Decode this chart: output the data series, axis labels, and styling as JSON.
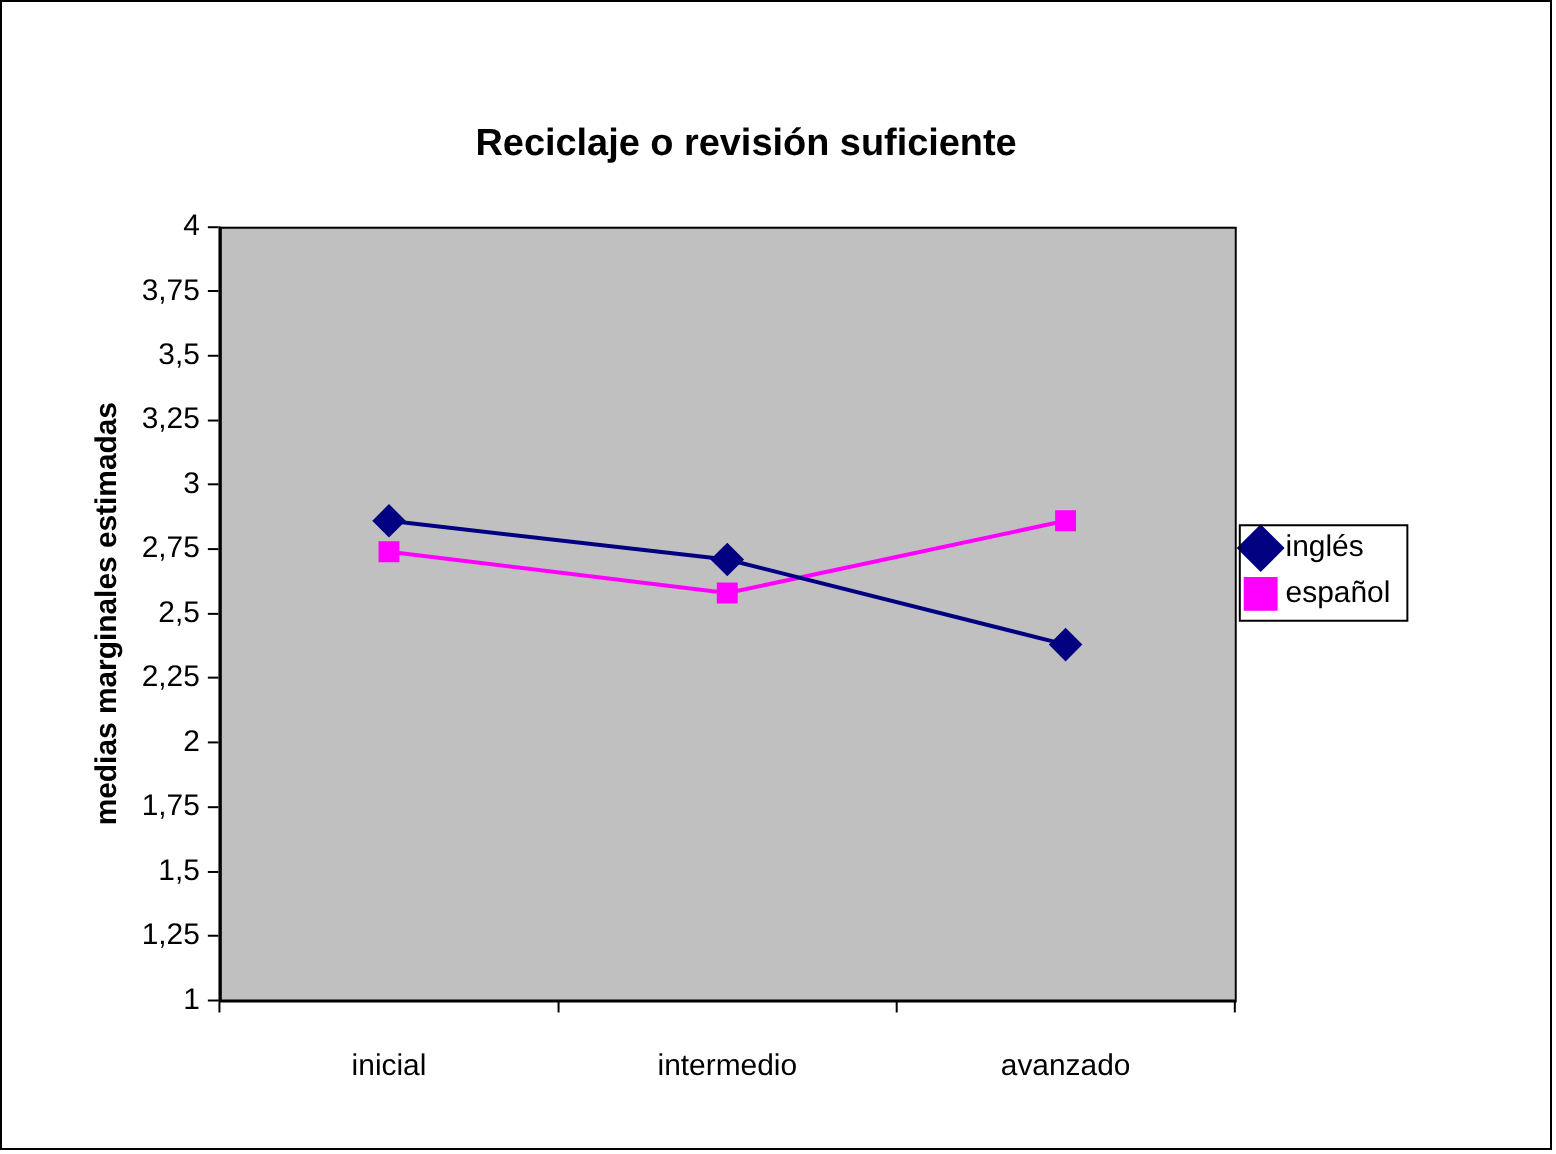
{
  "chart_data": {
    "type": "line",
    "title": "Reciclaje o revisión suficiente",
    "ylabel": "medias marginales estimadas",
    "categories": [
      "inicial",
      "intermedio",
      "avanzado"
    ],
    "series": [
      {
        "name": "inglés",
        "color": "#000080",
        "marker": "diamond",
        "values": [
          2.86,
          2.71,
          2.38
        ]
      },
      {
        "name": "español",
        "color": "#ff00ff",
        "marker": "square",
        "values": [
          2.74,
          2.58,
          2.86
        ]
      }
    ],
    "ylim": [
      1,
      4
    ],
    "yticks": [
      1,
      {
        "value": 1.25,
        "label": "1,25"
      },
      {
        "value": 1.5,
        "label": "1,5"
      },
      {
        "value": 1.75,
        "label": "1,75"
      },
      2,
      {
        "value": 2.25,
        "label": "2,25"
      },
      {
        "value": 2.5,
        "label": "2,5"
      },
      {
        "value": 2.75,
        "label": "2,75"
      },
      3,
      {
        "value": 3.25,
        "label": "3,25"
      },
      {
        "value": 3.5,
        "label": "3,5"
      },
      {
        "value": 3.75,
        "label": "3,75"
      },
      4
    ],
    "legend": "right"
  }
}
